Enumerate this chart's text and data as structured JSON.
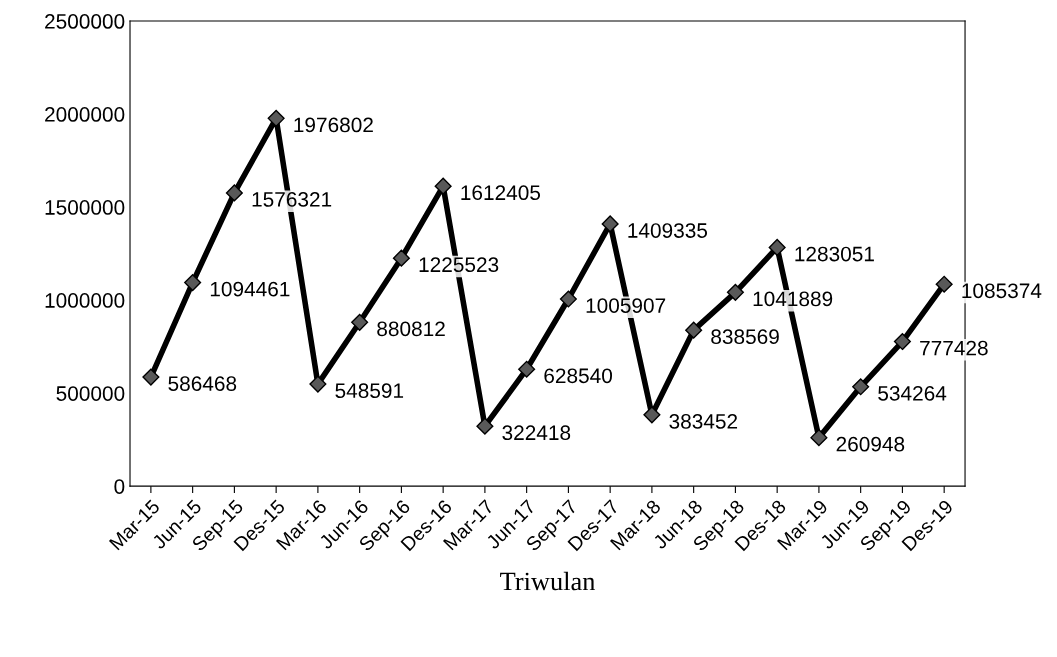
{
  "chart_data": {
    "type": "line",
    "xlabel": "Triwulan",
    "categories": [
      "Mar-15",
      "Jun-15",
      "Sep-15",
      "Des-15",
      "Mar-16",
      "Jun-16",
      "Sep-16",
      "Des-16",
      "Mar-17",
      "Jun-17",
      "Sep-17",
      "Des-17",
      "Mar-18",
      "Jun-18",
      "Sep-18",
      "Des-18",
      "Mar-19",
      "Jun-19",
      "Sep-19",
      "Des-19"
    ],
    "series": [
      {
        "color": "#000000",
        "values": [
          586468,
          1094461,
          1576321,
          1976802,
          548591,
          880812,
          1225523,
          1612405,
          322418,
          628540,
          1005907,
          1409335,
          383452,
          838569,
          1041889,
          1283051,
          260948,
          534264,
          777428,
          1085374
        ]
      }
    ],
    "ylim": [
      0,
      2500000
    ],
    "yticks": [
      0,
      500000,
      1000000,
      1500000,
      2000000,
      2500000
    ],
    "grid": false,
    "marker": "diamond",
    "line_style": "solid",
    "data_labels": true
  }
}
